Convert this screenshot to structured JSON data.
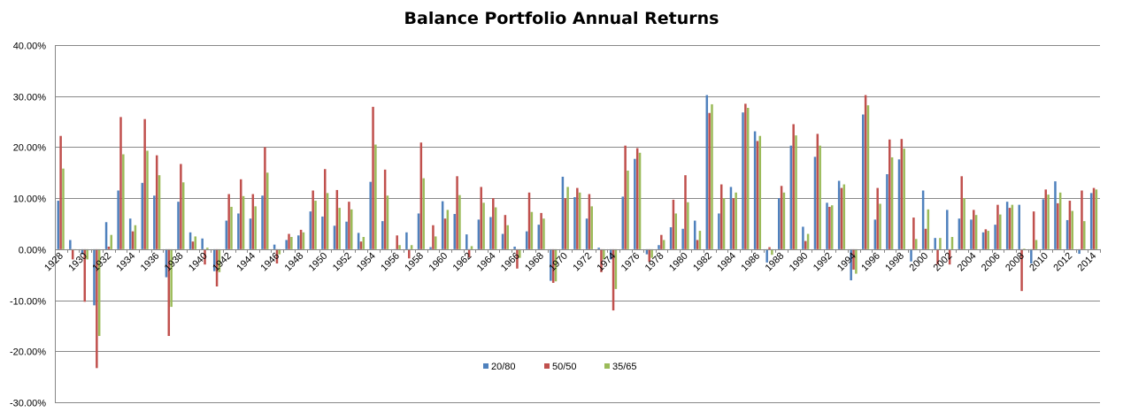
{
  "chart_data": {
    "type": "bar",
    "title": "Balance Portfolio Annual Returns",
    "xlabel": "",
    "ylabel": "",
    "ylim": [
      -0.3,
      0.4
    ],
    "y_ticks": [
      -0.3,
      -0.2,
      -0.1,
      0.0,
      0.1,
      0.2,
      0.3,
      0.4
    ],
    "y_tick_labels": [
      "-30.00%",
      "-20.00%",
      "-10.00%",
      "0.00%",
      "10.00%",
      "20.00%",
      "30.00%",
      "40.00%"
    ],
    "grid": true,
    "legend_position": "bottom-center",
    "categories": [
      "1928",
      "1929",
      "1930",
      "1931",
      "1932",
      "1933",
      "1934",
      "1935",
      "1936",
      "1937",
      "1938",
      "1939",
      "1940",
      "1941",
      "1942",
      "1943",
      "1944",
      "1945",
      "1946",
      "1947",
      "1948",
      "1949",
      "1950",
      "1951",
      "1952",
      "1953",
      "1954",
      "1955",
      "1956",
      "1957",
      "1958",
      "1959",
      "1960",
      "1961",
      "1962",
      "1963",
      "1964",
      "1965",
      "1966",
      "1967",
      "1968",
      "1969",
      "1970",
      "1971",
      "1972",
      "1973",
      "1974",
      "1975",
      "1976",
      "1977",
      "1978",
      "1979",
      "1980",
      "1981",
      "1982",
      "1983",
      "1984",
      "1985",
      "1986",
      "1987",
      "1988",
      "1989",
      "1990",
      "1991",
      "1992",
      "1993",
      "1994",
      "1995",
      "1996",
      "1997",
      "1998",
      "1999",
      "2000",
      "2001",
      "2002",
      "2003",
      "2004",
      "2005",
      "2006",
      "2007",
      "2008",
      "2009",
      "2010",
      "2011",
      "2012",
      "2013",
      "2014"
    ],
    "x_tick_labels": [
      "1928",
      "1930",
      "1932",
      "1934",
      "1936",
      "1938",
      "1940",
      "1942",
      "1944",
      "1946",
      "1948",
      "1950",
      "1952",
      "1954",
      "1956",
      "1958",
      "1960",
      "1962",
      "1964",
      "1966",
      "1968",
      "1970",
      "1972",
      "1974",
      "1976",
      "1978",
      "1980",
      "1982",
      "1984",
      "1986",
      "1988",
      "1990",
      "1992",
      "1994",
      "1996",
      "1998",
      "2000",
      "2002",
      "2004",
      "2006",
      "2008",
      "2010",
      "2012",
      "2014"
    ],
    "series": [
      {
        "name": "20/80",
        "color": "#4F81BD",
        "values": [
          0.095,
          0.018,
          -0.01,
          -0.11,
          0.053,
          0.115,
          0.06,
          0.13,
          0.105,
          -0.055,
          0.093,
          0.033,
          0.021,
          -0.043,
          0.056,
          0.07,
          0.06,
          0.105,
          0.009,
          0.018,
          0.027,
          0.074,
          0.064,
          0.046,
          0.054,
          0.032,
          0.132,
          0.055,
          -0.002,
          0.033,
          0.07,
          0.004,
          0.094,
          0.069,
          0.029,
          0.058,
          0.063,
          0.03,
          0.005,
          0.035,
          0.048,
          -0.062,
          0.142,
          0.102,
          0.06,
          0.003,
          -0.02,
          0.103,
          0.177,
          -0.01,
          0.008,
          0.043,
          0.04,
          0.056,
          0.302,
          0.07,
          0.122,
          0.268,
          0.231,
          -0.026,
          0.1,
          0.203,
          0.044,
          0.181,
          0.091,
          0.134,
          -0.061,
          0.264,
          0.058,
          0.147,
          0.176,
          -0.024,
          0.115,
          0.022,
          0.077,
          0.06,
          0.058,
          0.033,
          0.048,
          0.093,
          0.087,
          -0.028,
          0.098,
          0.133,
          0.057,
          -0.009,
          0.11
        ]
      },
      {
        "name": "50/50",
        "color": "#C0504D",
        "values": [
          0.222,
          -0.02,
          -0.103,
          -0.233,
          0.005,
          0.259,
          0.035,
          0.255,
          0.184,
          -0.17,
          0.167,
          0.015,
          -0.03,
          -0.073,
          0.108,
          0.137,
          0.108,
          0.2,
          -0.028,
          0.03,
          0.038,
          0.115,
          0.157,
          0.116,
          0.093,
          0.015,
          0.279,
          0.156,
          0.027,
          -0.018,
          0.209,
          0.047,
          0.06,
          0.143,
          -0.016,
          0.122,
          0.1,
          0.067,
          -0.038,
          0.111,
          0.071,
          -0.066,
          0.1,
          0.12,
          0.108,
          -0.045,
          -0.12,
          0.203,
          0.198,
          -0.025,
          0.028,
          0.097,
          0.145,
          0.018,
          0.267,
          0.127,
          0.1,
          0.285,
          0.212,
          0.004,
          0.124,
          0.245,
          0.016,
          0.226,
          0.083,
          0.12,
          -0.04,
          0.302,
          0.12,
          0.215,
          0.216,
          0.062,
          0.04,
          -0.03,
          -0.03,
          0.143,
          0.077,
          0.039,
          0.087,
          0.081,
          -0.082,
          0.074,
          0.117,
          0.09,
          0.095,
          0.115,
          0.12
        ]
      },
      {
        "name": "35/65",
        "color": "#9BBB59",
        "values": [
          0.158,
          -0.002,
          -0.02,
          -0.17,
          0.028,
          0.186,
          0.047,
          0.193,
          0.145,
          -0.113,
          0.131,
          0.025,
          0.003,
          -0.045,
          0.083,
          0.104,
          0.084,
          0.15,
          -0.01,
          0.024,
          0.033,
          0.095,
          0.11,
          0.081,
          0.078,
          0.024,
          0.205,
          0.105,
          0.008,
          0.008,
          0.139,
          0.025,
          0.077,
          0.106,
          0.006,
          0.091,
          0.082,
          0.047,
          -0.017,
          0.073,
          0.06,
          -0.063,
          0.122,
          0.111,
          0.084,
          -0.02,
          -0.078,
          0.154,
          0.189,
          -0.017,
          0.018,
          0.07,
          0.092,
          0.036,
          0.284,
          0.1,
          0.111,
          0.277,
          0.222,
          -0.011,
          0.111,
          0.223,
          0.03,
          0.203,
          0.086,
          0.127,
          -0.048,
          0.282,
          0.089,
          0.18,
          0.197,
          0.02,
          0.078,
          0.022,
          0.024,
          0.1,
          0.067,
          0.036,
          0.068,
          0.087,
          0.001,
          0.018,
          0.107,
          0.111,
          0.075,
          0.055,
          0.117
        ]
      }
    ]
  }
}
